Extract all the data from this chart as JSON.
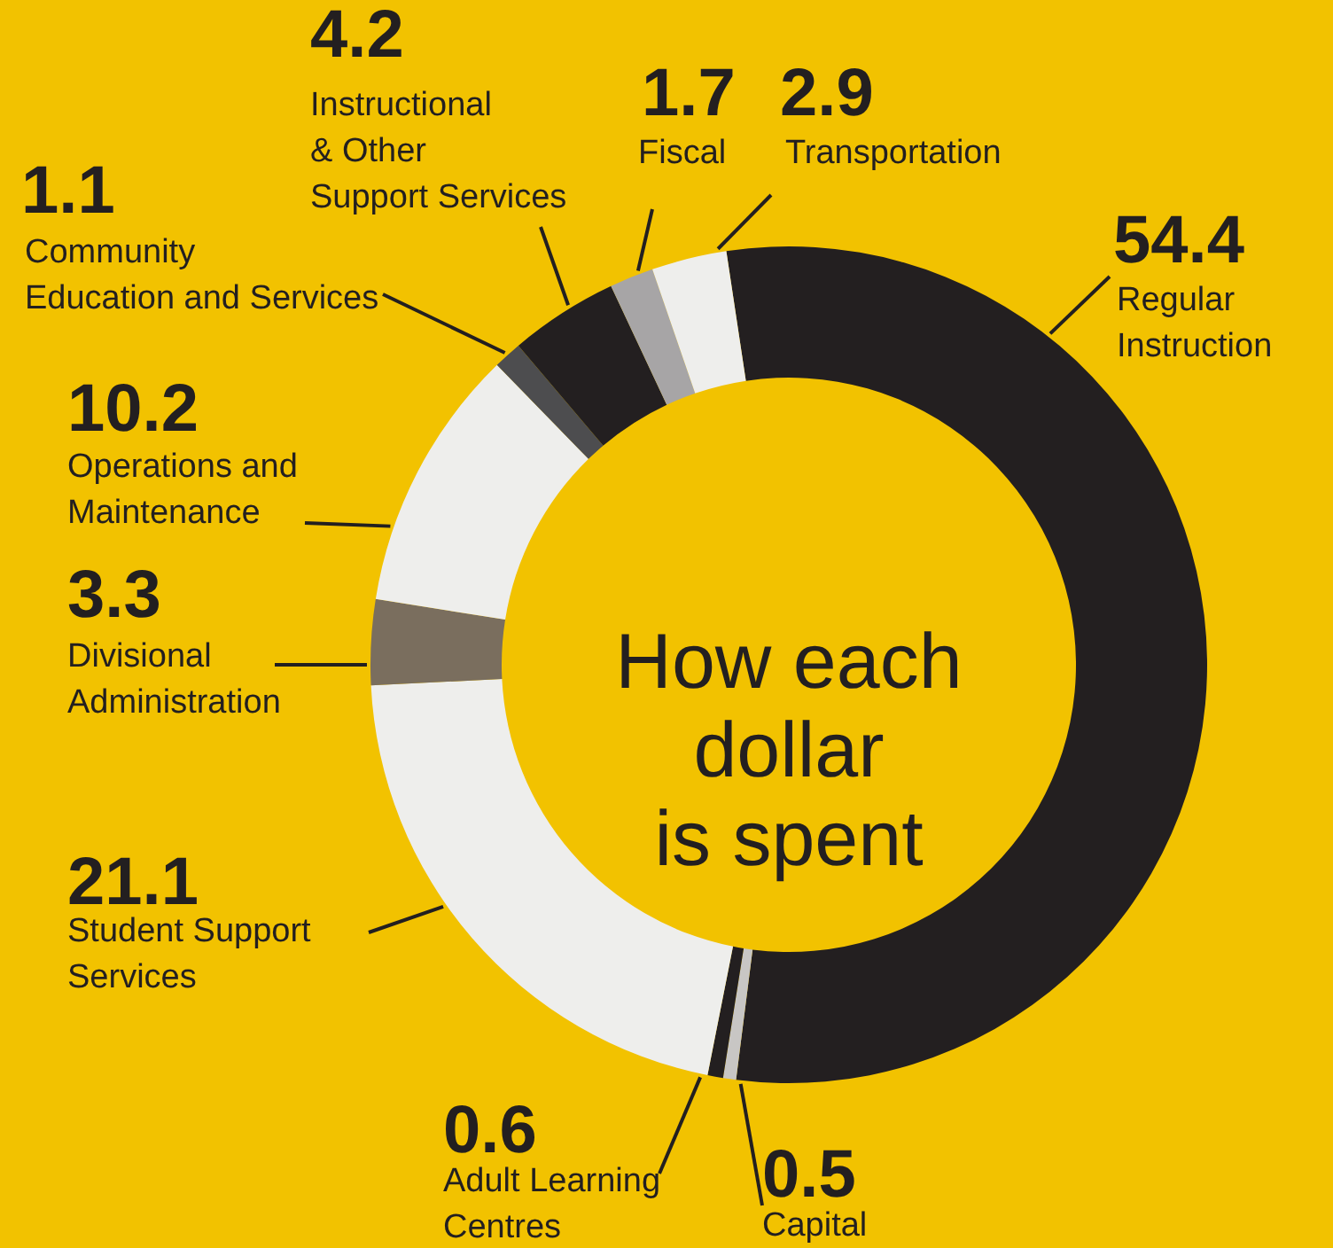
{
  "chart_data": {
    "type": "donut",
    "title": "How each\ndollar\nis spent",
    "categories": [
      "Regular\nInstruction",
      "Capital",
      "Adult Learning\nCentres",
      "Student Support\nServices",
      "Divisional\nAdministration",
      "Operations and\nMaintenance",
      "Community\nEducation and Services",
      "Instructional\n& Other\nSupport Services",
      "Fiscal",
      "Transportation"
    ],
    "values": [
      54.4,
      0.5,
      0.6,
      21.1,
      3.3,
      10.2,
      1.1,
      4.2,
      1.7,
      2.9
    ],
    "colors": [
      "#231f20",
      "#c8c6c4",
      "#231f20",
      "#eeeeec",
      "#7a6e5e",
      "#eeeeec",
      "#4d4d4f",
      "#231f20",
      "#a7a5a6",
      "#eeeeec"
    ],
    "data_labels": true
  }
}
